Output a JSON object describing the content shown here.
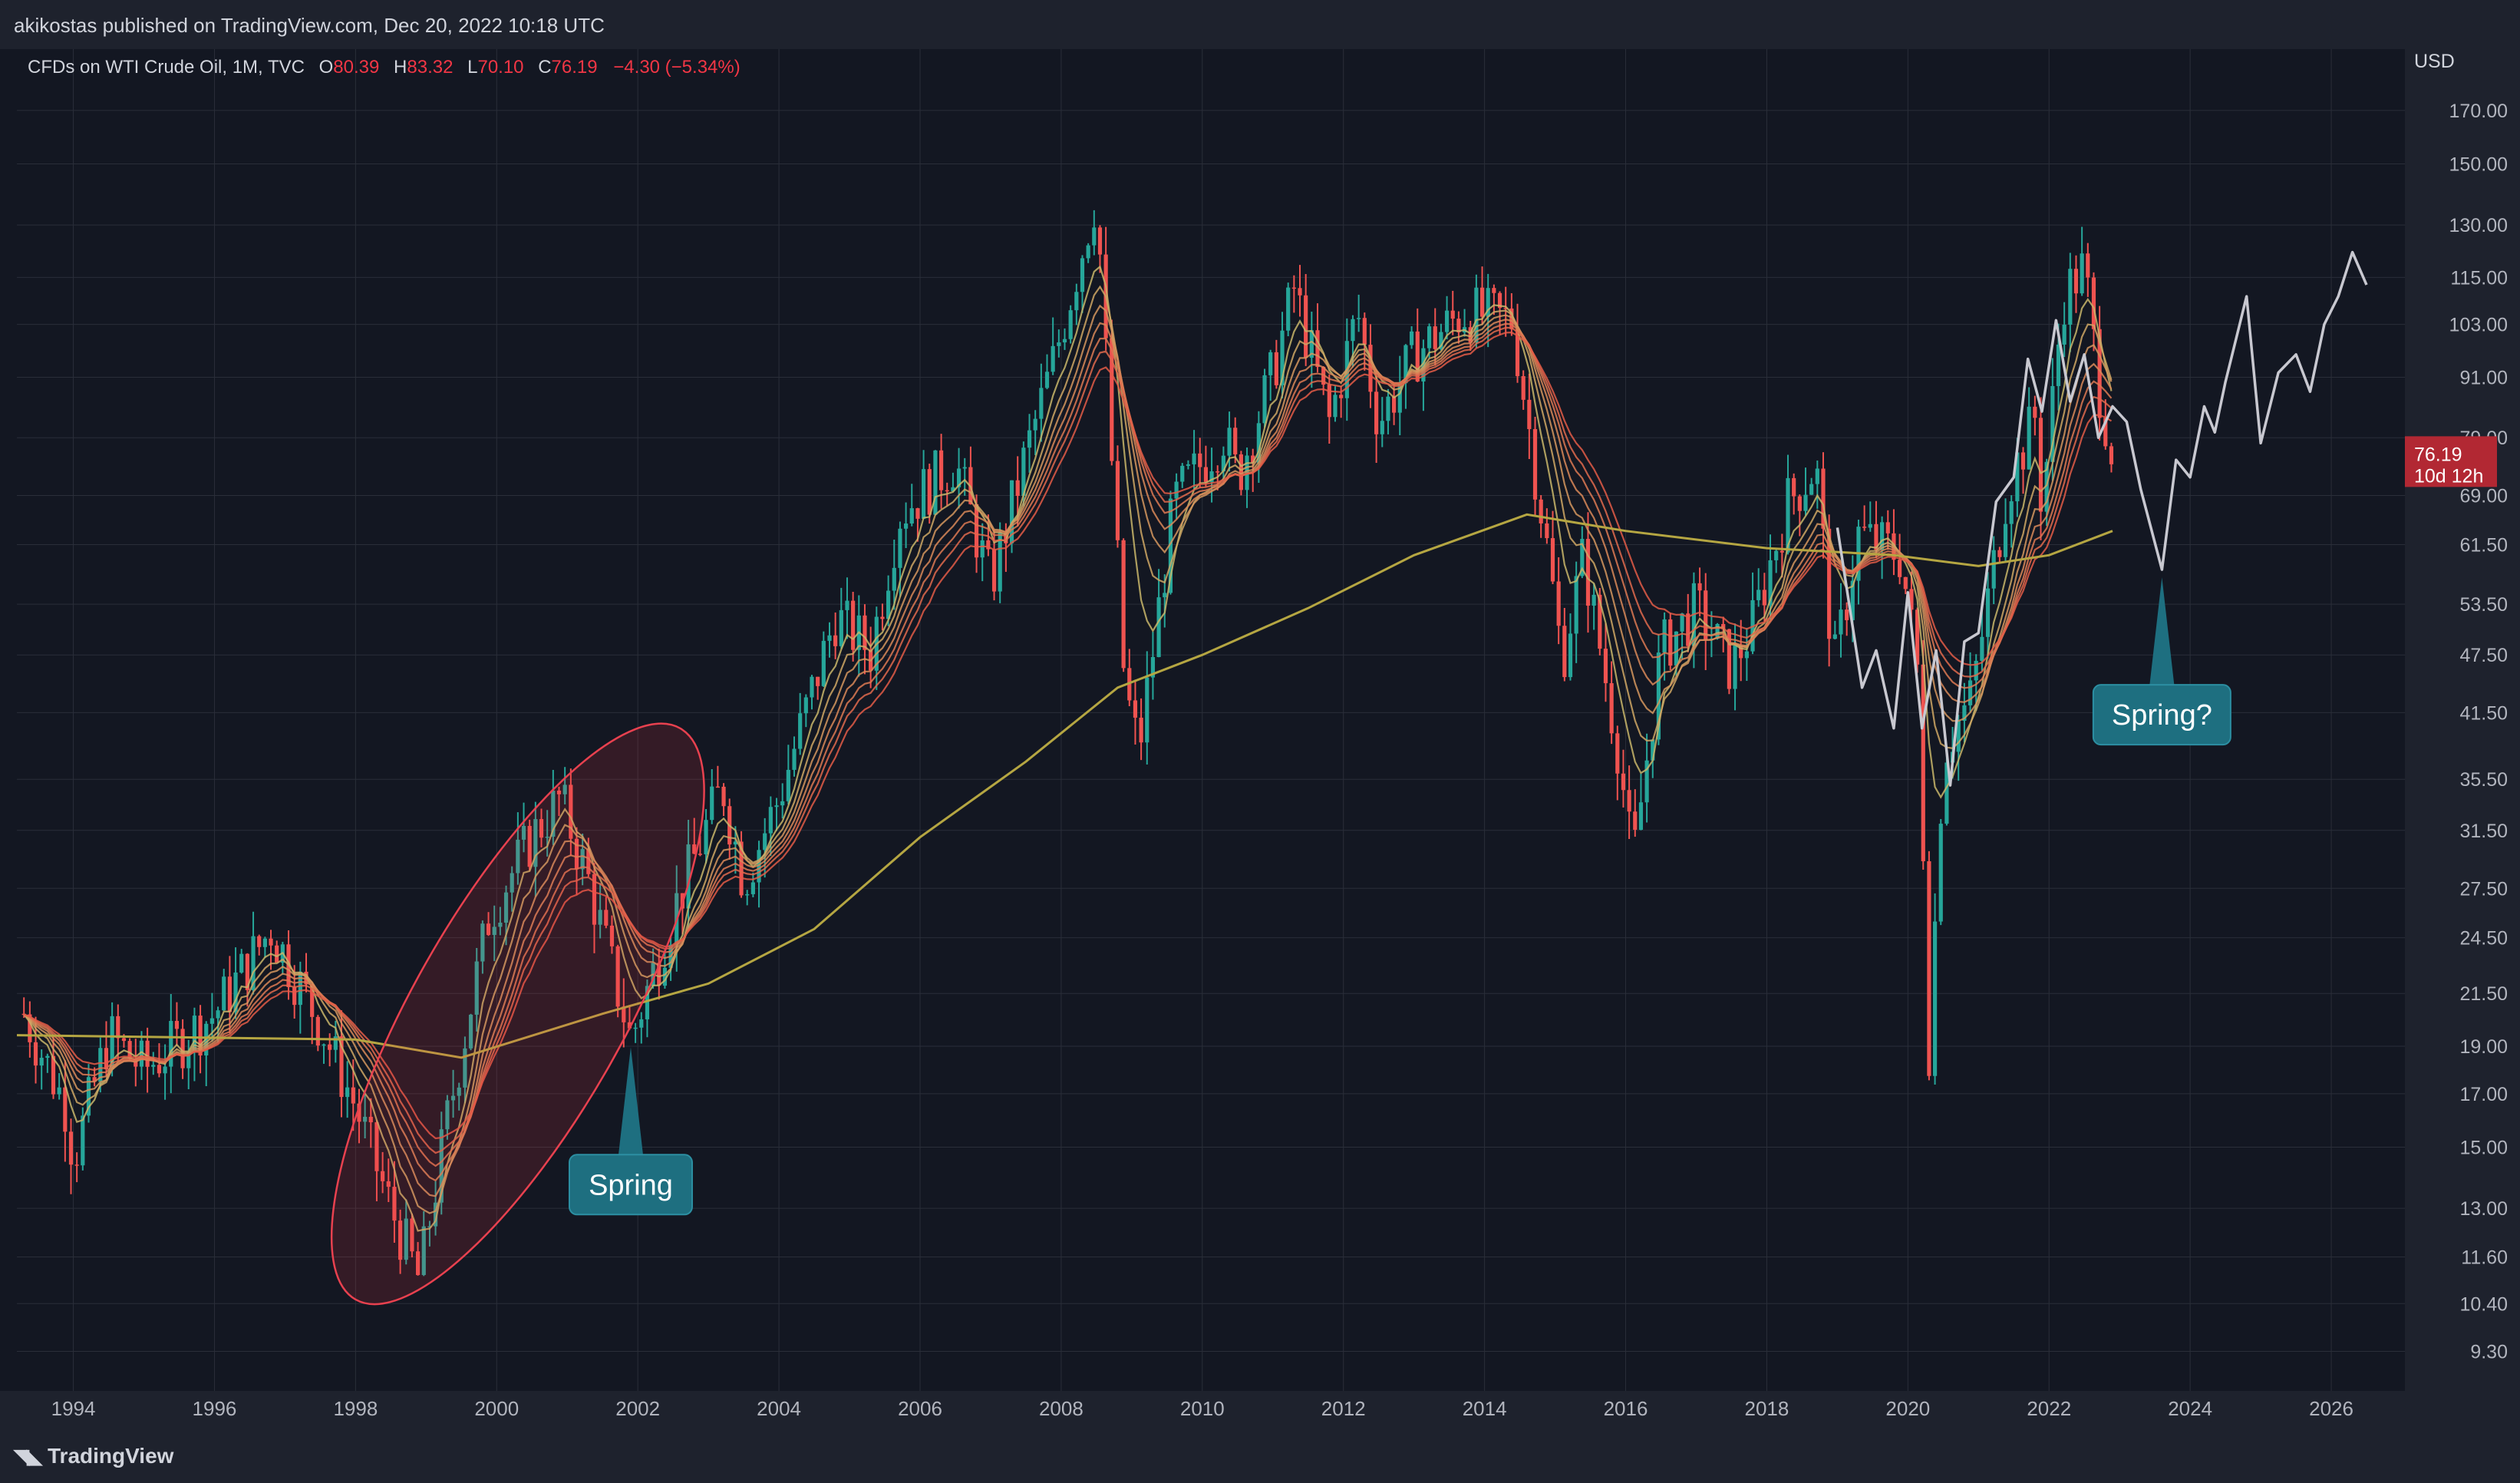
{
  "header": {
    "publisher_line": "akikostas published on TradingView.com, Dec 20, 2022 10:18 UTC"
  },
  "legend": {
    "symbol": "CFDs on WTI Crude Oil, 1M, TVC",
    "open_label": "O",
    "open": "80.39",
    "high_label": "H",
    "high": "83.32",
    "low_label": "L",
    "low": "70.10",
    "close_label": "C",
    "close": "76.19",
    "change": "−4.30 (−5.34%)"
  },
  "footer": {
    "brand": "TradingView"
  },
  "colors": {
    "background": "#131722",
    "bar": "#1e222d",
    "grid": "#2a2e39",
    "up": "#26a69a",
    "down": "#ef5350",
    "sma": "#b5a642",
    "projection": "#c8c8d0",
    "callout": "#1e6f80",
    "price_tag": "#b22833"
  },
  "chart_data": {
    "type": "candlestick",
    "interval": "1M",
    "currency_label": "USD",
    "y_scale": "log",
    "ylim": [
      8.6,
      190
    ],
    "xlim": [
      1993.2,
      2027.0
    ],
    "x_ticks": [
      "1994",
      "1996",
      "1998",
      "2000",
      "2002",
      "2004",
      "2006",
      "2008",
      "2010",
      "2012",
      "2014",
      "2016",
      "2018",
      "2020",
      "2022",
      "2024",
      "2026"
    ],
    "y_ticks": [
      "170.00",
      "150.00",
      "130.00",
      "115.00",
      "103.00",
      "91.00",
      "79.00",
      "69.00",
      "61.50",
      "53.50",
      "47.50",
      "41.50",
      "35.50",
      "31.50",
      "27.50",
      "24.50",
      "21.50",
      "19.00",
      "17.00",
      "15.00",
      "13.00",
      "11.60",
      "10.40",
      "9.30"
    ],
    "price_keypoints": [
      [
        1993.3,
        20.5
      ],
      [
        1993.9,
        16.5
      ],
      [
        1994.0,
        14.6
      ],
      [
        1994.5,
        19.5
      ],
      [
        1995.0,
        18.0
      ],
      [
        1996.0,
        20.5
      ],
      [
        1996.8,
        25.0
      ],
      [
        1997.5,
        20.0
      ],
      [
        1998.0,
        16.5
      ],
      [
        1998.5,
        13.0
      ],
      [
        1998.9,
        11.0
      ],
      [
        1999.3,
        16.0
      ],
      [
        1999.9,
        26.0
      ],
      [
        2000.5,
        31.0
      ],
      [
        2000.9,
        34.0
      ],
      [
        2001.3,
        28.0
      ],
      [
        2001.9,
        19.3
      ],
      [
        2002.5,
        26.0
      ],
      [
        2003.2,
        35.0
      ],
      [
        2003.5,
        28.0
      ],
      [
        2004.0,
        34.0
      ],
      [
        2004.8,
        52.0
      ],
      [
        2005.3,
        48.0
      ],
      [
        2005.7,
        66.0
      ],
      [
        2006.5,
        75.0
      ],
      [
        2007.0,
        56.0
      ],
      [
        2007.5,
        76.0
      ],
      [
        2007.9,
        95.0
      ],
      [
        2008.5,
        140.0
      ],
      [
        2008.9,
        44.0
      ],
      [
        2009.1,
        38.0
      ],
      [
        2009.6,
        68.0
      ],
      [
        2010.3,
        80.0
      ],
      [
        2010.5,
        72.0
      ],
      [
        2011.0,
        92.0
      ],
      [
        2011.3,
        112.0
      ],
      [
        2011.8,
        82.0
      ],
      [
        2012.2,
        106.0
      ],
      [
        2012.5,
        82.0
      ],
      [
        2013.0,
        96.0
      ],
      [
        2013.7,
        106.0
      ],
      [
        2014.4,
        104.0
      ],
      [
        2014.9,
        60.0
      ],
      [
        2015.1,
        47.0
      ],
      [
        2015.4,
        60.0
      ],
      [
        2015.9,
        38.0
      ],
      [
        2016.1,
        29.0
      ],
      [
        2016.5,
        48.0
      ],
      [
        2017.0,
        53.0
      ],
      [
        2017.5,
        46.0
      ],
      [
        2017.8,
        51.0
      ],
      [
        2018.3,
        68.0
      ],
      [
        2018.7,
        74.0
      ],
      [
        2018.95,
        46.0
      ],
      [
        2019.3,
        63.0
      ],
      [
        2019.9,
        60.0
      ],
      [
        2020.15,
        45.0
      ],
      [
        2020.3,
        19.0
      ],
      [
        2020.5,
        38.0
      ],
      [
        2020.9,
        43.0
      ],
      [
        2021.4,
        70.0
      ],
      [
        2021.8,
        83.0
      ],
      [
        2021.9,
        67.0
      ],
      [
        2022.2,
        110.0
      ],
      [
        2022.5,
        118.0
      ],
      [
        2022.7,
        90.0
      ],
      [
        2022.9,
        76.19
      ]
    ],
    "ribbon_offsets_pct": [
      0,
      -2.5,
      -5,
      -7.5,
      -10,
      -12.5,
      -15
    ],
    "sma_keypoints": [
      [
        1993.2,
        19.5
      ],
      [
        1998.0,
        19.3
      ],
      [
        1999.5,
        18.5
      ],
      [
        2001.5,
        20.5
      ],
      [
        2003.0,
        22.0
      ],
      [
        2004.5,
        25.0
      ],
      [
        2006.0,
        31.0
      ],
      [
        2007.5,
        37.0
      ],
      [
        2008.8,
        44.0
      ],
      [
        2010.0,
        47.5
      ],
      [
        2011.5,
        53.0
      ],
      [
        2013.0,
        60.0
      ],
      [
        2014.6,
        66.0
      ],
      [
        2016.0,
        63.5
      ],
      [
        2018.0,
        61.0
      ],
      [
        2019.8,
        60.0
      ],
      [
        2021.0,
        58.5
      ],
      [
        2022.0,
        60.0
      ],
      [
        2022.9,
        63.5
      ]
    ],
    "projection_series": [
      [
        2019.0,
        64.0
      ],
      [
        2019.35,
        44.0
      ],
      [
        2019.55,
        48.0
      ],
      [
        2019.8,
        40.0
      ],
      [
        2020.0,
        55.0
      ],
      [
        2020.2,
        40.0
      ],
      [
        2020.4,
        48.0
      ],
      [
        2020.6,
        35.0
      ],
      [
        2020.8,
        49.0
      ],
      [
        2021.0,
        50.0
      ],
      [
        2021.25,
        68.0
      ],
      [
        2021.5,
        72.0
      ],
      [
        2021.7,
        95.0
      ],
      [
        2021.9,
        84.0
      ],
      [
        2022.1,
        104.0
      ],
      [
        2022.3,
        86.0
      ],
      [
        2022.5,
        96.0
      ],
      [
        2022.7,
        79.0
      ],
      [
        2022.9,
        85.0
      ],
      [
        2023.1,
        82.0
      ],
      [
        2023.3,
        70.0
      ],
      [
        2023.6,
        58.0
      ],
      [
        2023.8,
        75.0
      ],
      [
        2024.0,
        72.0
      ],
      [
        2024.2,
        85.0
      ],
      [
        2024.35,
        80.0
      ],
      [
        2024.5,
        90.0
      ],
      [
        2024.8,
        110.0
      ],
      [
        2025.0,
        78.0
      ],
      [
        2025.25,
        92.0
      ],
      [
        2025.5,
        96.0
      ],
      [
        2025.7,
        88.0
      ],
      [
        2025.9,
        103.0
      ],
      [
        2026.1,
        110.0
      ],
      [
        2026.3,
        122.0
      ],
      [
        2026.5,
        113.0
      ]
    ],
    "annotations": [
      {
        "text": "Spring",
        "x": 2001.9,
        "price": 19.3
      },
      {
        "text": "Spring?",
        "x": 2023.6,
        "price": 58.0
      }
    ],
    "highlight_ellipse": {
      "x_center": 2000.1,
      "price_center": 18.0,
      "x_extent": [
        1998.0,
        2002.6
      ],
      "price_extent": [
        10.5,
        40.0
      ]
    },
    "last_price": {
      "value": "76.19",
      "countdown": "10d 12h"
    }
  }
}
